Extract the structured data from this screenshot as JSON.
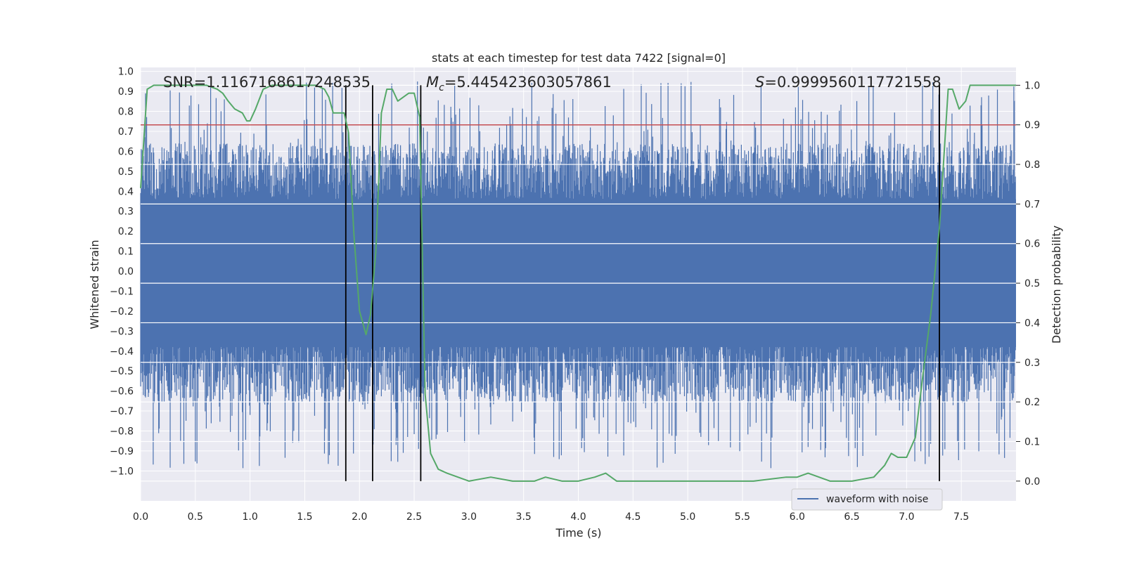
{
  "chart_data": {
    "type": "line",
    "title": "stats at each timestep for test data 7422 [signal=0]",
    "xlabel": "Time (s)",
    "ylabel": "Whitened strain",
    "y2label": "Detection probability",
    "xlim": [
      0.0,
      8.0
    ],
    "ylim": [
      -1.15,
      1.02
    ],
    "y2lim": [
      -0.05,
      1.045
    ],
    "xticks": [
      "0.0",
      "0.5",
      "1.0",
      "1.5",
      "2.0",
      "2.5",
      "3.0",
      "3.5",
      "4.0",
      "4.5",
      "5.0",
      "5.5",
      "6.0",
      "6.5",
      "7.0",
      "7.5"
    ],
    "yticks": [
      "1.0",
      "0.9",
      "0.8",
      "0.7",
      "0.6",
      "0.5",
      "0.4",
      "0.3",
      "0.2",
      "0.1",
      "0.0",
      "−0.1",
      "−0.2",
      "−0.3",
      "−0.4",
      "−0.5",
      "−0.6",
      "−0.7",
      "−0.8",
      "−0.9",
      "−1.0"
    ],
    "y2ticks": [
      "1.0",
      "0.9",
      "0.8",
      "0.7",
      "0.6",
      "0.5",
      "0.4",
      "0.3",
      "0.2",
      "0.1",
      "0.0"
    ],
    "annotations": {
      "snr": "SNR=1.1167168617248535",
      "mc_symbol": "M",
      "mc_sub": "c",
      "mc_value": "=5.445423603057861",
      "s_symbol": "S",
      "s_value": "=0.9999560117721558"
    },
    "legend": {
      "label": "waveform with noise",
      "position": "lower-right"
    },
    "threshold": {
      "axis": "right",
      "value": 0.9,
      "color": "#c44e52"
    },
    "event_lines": [
      1.875,
      2.12,
      2.56,
      7.3
    ],
    "waveform": {
      "name": "waveform with noise",
      "color": "#4c72b0",
      "seed": 7422,
      "sample_count": 1600,
      "core_amplitude": 0.36,
      "upper_envelope_max": 0.95,
      "lower_envelope_min": -0.99
    },
    "probability_series": {
      "name": "detection probability",
      "color": "#55a868",
      "x": [
        0.0,
        0.06,
        0.12,
        0.25,
        0.4,
        0.6,
        0.7,
        0.75,
        0.8,
        0.86,
        0.93,
        0.97,
        1.0,
        1.05,
        1.12,
        1.2,
        1.3,
        1.45,
        1.6,
        1.68,
        1.72,
        1.76,
        1.8,
        1.86,
        1.9,
        1.95,
        2.0,
        2.06,
        2.1,
        2.15,
        2.2,
        2.25,
        2.3,
        2.35,
        2.4,
        2.45,
        2.5,
        2.55,
        2.6,
        2.65,
        2.72,
        2.8,
        2.9,
        3.0,
        3.2,
        3.4,
        3.6,
        3.7,
        3.85,
        4.0,
        4.15,
        4.25,
        4.35,
        4.6,
        4.8,
        5.0,
        5.3,
        5.6,
        5.9,
        6.0,
        6.1,
        6.3,
        6.5,
        6.7,
        6.8,
        6.86,
        6.92,
        7.0,
        7.08,
        7.15,
        7.22,
        7.3,
        7.38,
        7.42,
        7.48,
        7.54,
        7.58,
        7.65,
        7.7,
        7.76,
        7.85,
        8.0
      ],
      "y": [
        0.74,
        0.99,
        1.0,
        1.0,
        1.0,
        1.0,
        0.99,
        0.98,
        0.96,
        0.94,
        0.93,
        0.91,
        0.91,
        0.94,
        0.99,
        1.0,
        1.0,
        1.0,
        1.0,
        0.99,
        0.97,
        0.93,
        0.93,
        0.93,
        0.88,
        0.62,
        0.43,
        0.37,
        0.42,
        0.58,
        0.93,
        0.99,
        0.99,
        0.96,
        0.97,
        0.98,
        0.98,
        0.92,
        0.22,
        0.07,
        0.03,
        0.02,
        0.01,
        0.0,
        0.01,
        0.0,
        0.0,
        0.01,
        0.0,
        0.0,
        0.01,
        0.02,
        0.0,
        0.0,
        0.0,
        0.0,
        0.0,
        0.0,
        0.01,
        0.01,
        0.02,
        0.0,
        0.0,
        0.01,
        0.04,
        0.07,
        0.06,
        0.06,
        0.11,
        0.27,
        0.42,
        0.64,
        0.99,
        0.99,
        0.94,
        0.96,
        1.0,
        1.0,
        1.0,
        1.0,
        1.0,
        1.0
      ]
    }
  }
}
